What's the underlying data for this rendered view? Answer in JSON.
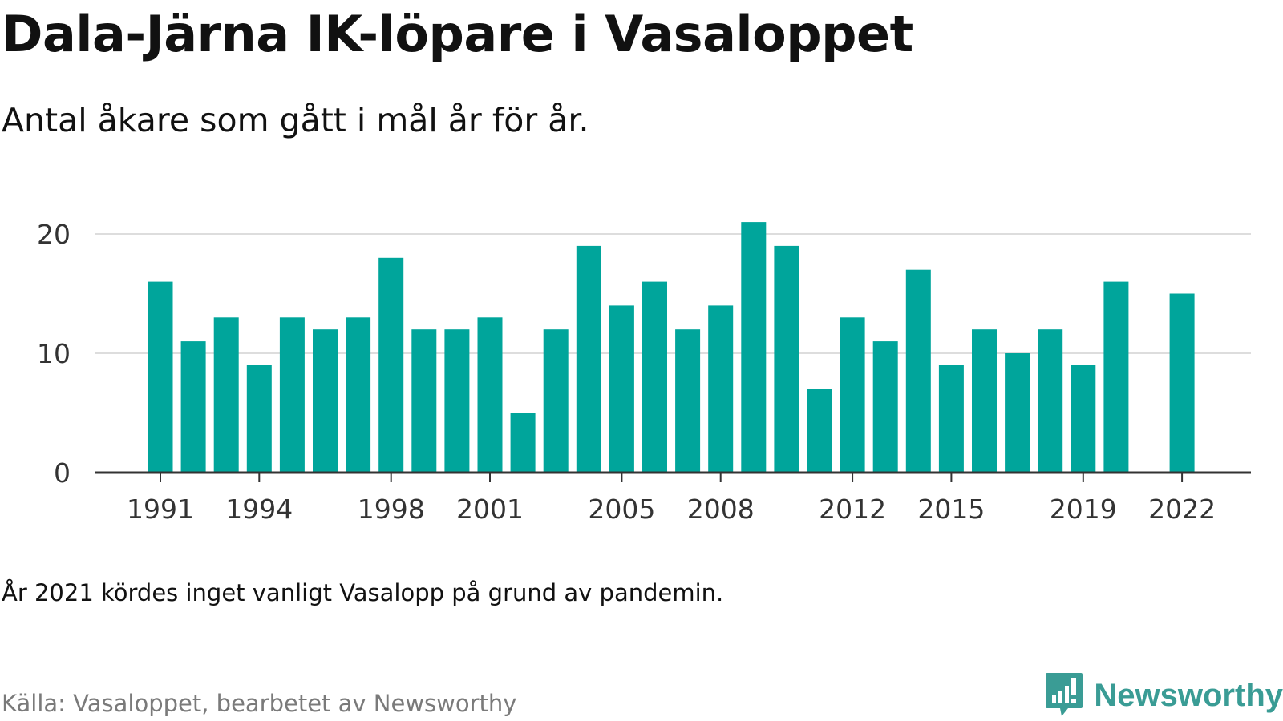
{
  "title": "Dala-Järna IK-löpare i Vasaloppet",
  "subtitle": "Antal åkare som gått i mål år för år.",
  "note": "År 2021 kördes inget vanligt Vasalopp på grund av pandemin.",
  "source": "Källa: Vasaloppet, bearbetet av Newsworthy",
  "brand": {
    "name": "Newsworthy",
    "color": "#3a9c95",
    "icon": "newsworthy-logo-icon"
  },
  "colors": {
    "bar": "#00a59b",
    "axis": "#333333",
    "grid": "#dddddd"
  },
  "chart_data": {
    "type": "bar",
    "x": [
      1991,
      1992,
      1993,
      1994,
      1995,
      1996,
      1997,
      1998,
      1999,
      2000,
      2001,
      2002,
      2003,
      2004,
      2005,
      2006,
      2007,
      2008,
      2009,
      2010,
      2011,
      2012,
      2013,
      2014,
      2015,
      2016,
      2017,
      2018,
      2019,
      2020,
      2021,
      2022
    ],
    "values": [
      16,
      11,
      13,
      9,
      13,
      12,
      13,
      18,
      12,
      12,
      13,
      5,
      12,
      19,
      14,
      16,
      12,
      14,
      21,
      19,
      7,
      13,
      11,
      17,
      9,
      12,
      10,
      12,
      9,
      16,
      null,
      15
    ],
    "xticks": [
      "1991",
      "1994",
      "1998",
      "2001",
      "2005",
      "2008",
      "2012",
      "2015",
      "2019",
      "2022"
    ],
    "yticks": [
      "0",
      "10",
      "20"
    ],
    "ylim": [
      0,
      20
    ],
    "grid": true,
    "legend": "none"
  }
}
